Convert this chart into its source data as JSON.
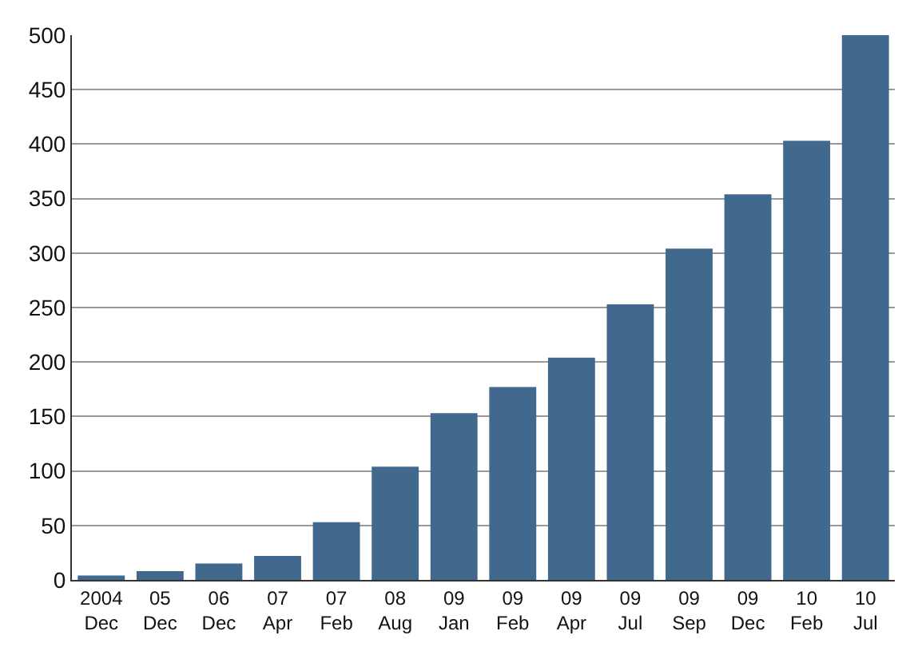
{
  "chart_data": {
    "type": "bar",
    "categories": [
      "2004\nDec",
      "05\nDec",
      "06\nDec",
      "07\nApr",
      "07\nFeb",
      "08\nAug",
      "09\nJan",
      "09\nFeb",
      "09\nApr",
      "09\nJul",
      "09\nSep",
      "09\nDec",
      "10\nFeb",
      "10\nJul"
    ],
    "values": [
      4,
      8,
      15,
      22,
      53,
      104,
      153,
      177,
      204,
      253,
      304,
      354,
      403,
      500
    ],
    "color": "#41688d",
    "ylim": [
      0,
      500
    ],
    "yticks": [
      0,
      50,
      100,
      150,
      200,
      250,
      300,
      350,
      400,
      450,
      500
    ],
    "grid": "y"
  }
}
